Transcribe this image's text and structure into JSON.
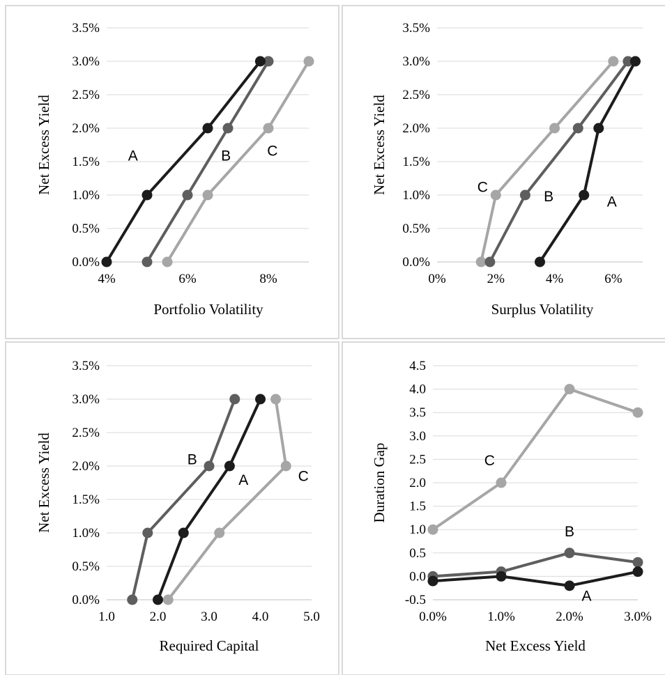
{
  "colors": {
    "A": "#1c1c1c",
    "B": "#5e5e5e",
    "C": "#a6a6a6"
  },
  "chart_data": [
    {
      "type": "line",
      "xlabel": "Portfolio Volatility",
      "ylabel": "Net Excess Yield",
      "xlim": [
        0.04,
        0.09
      ],
      "ylim": [
        0,
        0.035
      ],
      "xticks": [
        0.04,
        0.06,
        0.08
      ],
      "xtick_labels": [
        "4%",
        "6%",
        "8%"
      ],
      "yticks": [
        0,
        0.005,
        0.01,
        0.015,
        0.02,
        0.025,
        0.03,
        0.035
      ],
      "ytick_labels": [
        "0.0%",
        "0.5%",
        "1.0%",
        "1.5%",
        "2.0%",
        "2.5%",
        "3.0%",
        "3.5%"
      ],
      "grid": "horizontal",
      "series": [
        {
          "name": "A",
          "x": [
            0.04,
            0.05,
            0.065,
            0.078
          ],
          "y": [
            0,
            0.01,
            0.02,
            0.03
          ],
          "label_at": [
            0.0465,
            0.016
          ]
        },
        {
          "name": "B",
          "x": [
            0.05,
            0.06,
            0.07,
            0.08
          ],
          "y": [
            0,
            0.01,
            0.02,
            0.03
          ],
          "label_at": [
            0.0695,
            0.016
          ]
        },
        {
          "name": "C",
          "x": [
            0.055,
            0.065,
            0.08,
            0.09
          ],
          "y": [
            0,
            0.01,
            0.02,
            0.03
          ],
          "label_at": [
            0.081,
            0.0167
          ]
        }
      ]
    },
    {
      "type": "line",
      "xlabel": "Surplus Volatility",
      "ylabel": "Net Excess Yield",
      "xlim": [
        0,
        0.07
      ],
      "ylim": [
        0,
        0.035
      ],
      "xticks": [
        0,
        0.02,
        0.04,
        0.06
      ],
      "xtick_labels": [
        "0%",
        "2%",
        "4%",
        "6%"
      ],
      "yticks": [
        0,
        0.005,
        0.01,
        0.015,
        0.02,
        0.025,
        0.03,
        0.035
      ],
      "ytick_labels": [
        "0.0%",
        "0.5%",
        "1.0%",
        "1.5%",
        "2.0%",
        "2.5%",
        "3.0%",
        "3.5%"
      ],
      "grid": "horizontal",
      "series": [
        {
          "name": "A",
          "x": [
            0.035,
            0.05,
            0.055,
            0.0675
          ],
          "y": [
            0,
            0.01,
            0.02,
            0.03
          ],
          "label_at": [
            0.0595,
            0.0091
          ]
        },
        {
          "name": "B",
          "x": [
            0.018,
            0.03,
            0.048,
            0.065
          ],
          "y": [
            0,
            0.01,
            0.02,
            0.03
          ],
          "label_at": [
            0.038,
            0.0099
          ]
        },
        {
          "name": "C",
          "x": [
            0.015,
            0.02,
            0.04,
            0.06
          ],
          "y": [
            0,
            0.01,
            0.02,
            0.03
          ],
          "label_at": [
            0.0155,
            0.0113
          ]
        }
      ]
    },
    {
      "type": "line",
      "xlabel": "Required Capital",
      "ylabel": "Net Excess Yield",
      "xlim": [
        1.0,
        5.0
      ],
      "ylim": [
        0,
        0.035
      ],
      "xticks": [
        1.0,
        2.0,
        3.0,
        4.0,
        5.0
      ],
      "xtick_labels": [
        "1.0",
        "2.0",
        "3.0",
        "4.0",
        "5.0"
      ],
      "yticks": [
        0,
        0.005,
        0.01,
        0.015,
        0.02,
        0.025,
        0.03,
        0.035
      ],
      "ytick_labels": [
        "0.0%",
        "0.5%",
        "1.0%",
        "1.5%",
        "2.0%",
        "2.5%",
        "3.0%",
        "3.5%"
      ],
      "grid": "horizontal",
      "series": [
        {
          "name": "A",
          "x": [
            2.0,
            2.5,
            3.4,
            4.0
          ],
          "y": [
            0,
            0.01,
            0.02,
            0.03
          ],
          "label_at": [
            3.67,
            0.018
          ]
        },
        {
          "name": "B",
          "x": [
            1.5,
            1.8,
            3.0,
            3.5
          ],
          "y": [
            0,
            0.01,
            0.02,
            0.03
          ],
          "label_at": [
            2.67,
            0.0211
          ]
        },
        {
          "name": "C",
          "x": [
            2.2,
            3.2,
            4.5,
            4.3
          ],
          "y": [
            0,
            0.01,
            0.02,
            0.03
          ],
          "label_at": [
            4.84,
            0.0186
          ]
        }
      ]
    },
    {
      "type": "line",
      "xlabel": "Net Excess Yield",
      "ylabel": "Duration Gap",
      "xlim": [
        0,
        0.03
      ],
      "ylim": [
        -0.5,
        4.5
      ],
      "xticks": [
        0,
        0.01,
        0.02,
        0.03
      ],
      "xtick_labels": [
        "0.0%",
        "1.0%",
        "2.0%",
        "3.0%"
      ],
      "yticks": [
        -0.5,
        0,
        0.5,
        1.0,
        1.5,
        2.0,
        2.5,
        3.0,
        3.5,
        4.0,
        4.5
      ],
      "ytick_labels": [
        "-0.5",
        "0.0",
        "0.5",
        "1.0",
        "1.5",
        "2.0",
        "2.5",
        "3.0",
        "3.5",
        "4.0",
        "4.5"
      ],
      "grid": "horizontal",
      "series": [
        {
          "name": "A",
          "x": [
            0,
            0.01,
            0.02,
            0.03
          ],
          "y": [
            -0.1,
            0.0,
            -0.2,
            0.1
          ],
          "label_at": [
            0.0225,
            -0.4
          ]
        },
        {
          "name": "B",
          "x": [
            0,
            0.01,
            0.02,
            0.03
          ],
          "y": [
            0.0,
            0.1,
            0.5,
            0.3
          ],
          "label_at": [
            0.02,
            0.97
          ]
        },
        {
          "name": "C",
          "x": [
            0,
            0.01,
            0.02,
            0.03
          ],
          "y": [
            1.0,
            2.0,
            4.0,
            3.5
          ],
          "label_at": [
            0.0083,
            2.49
          ]
        }
      ]
    }
  ]
}
